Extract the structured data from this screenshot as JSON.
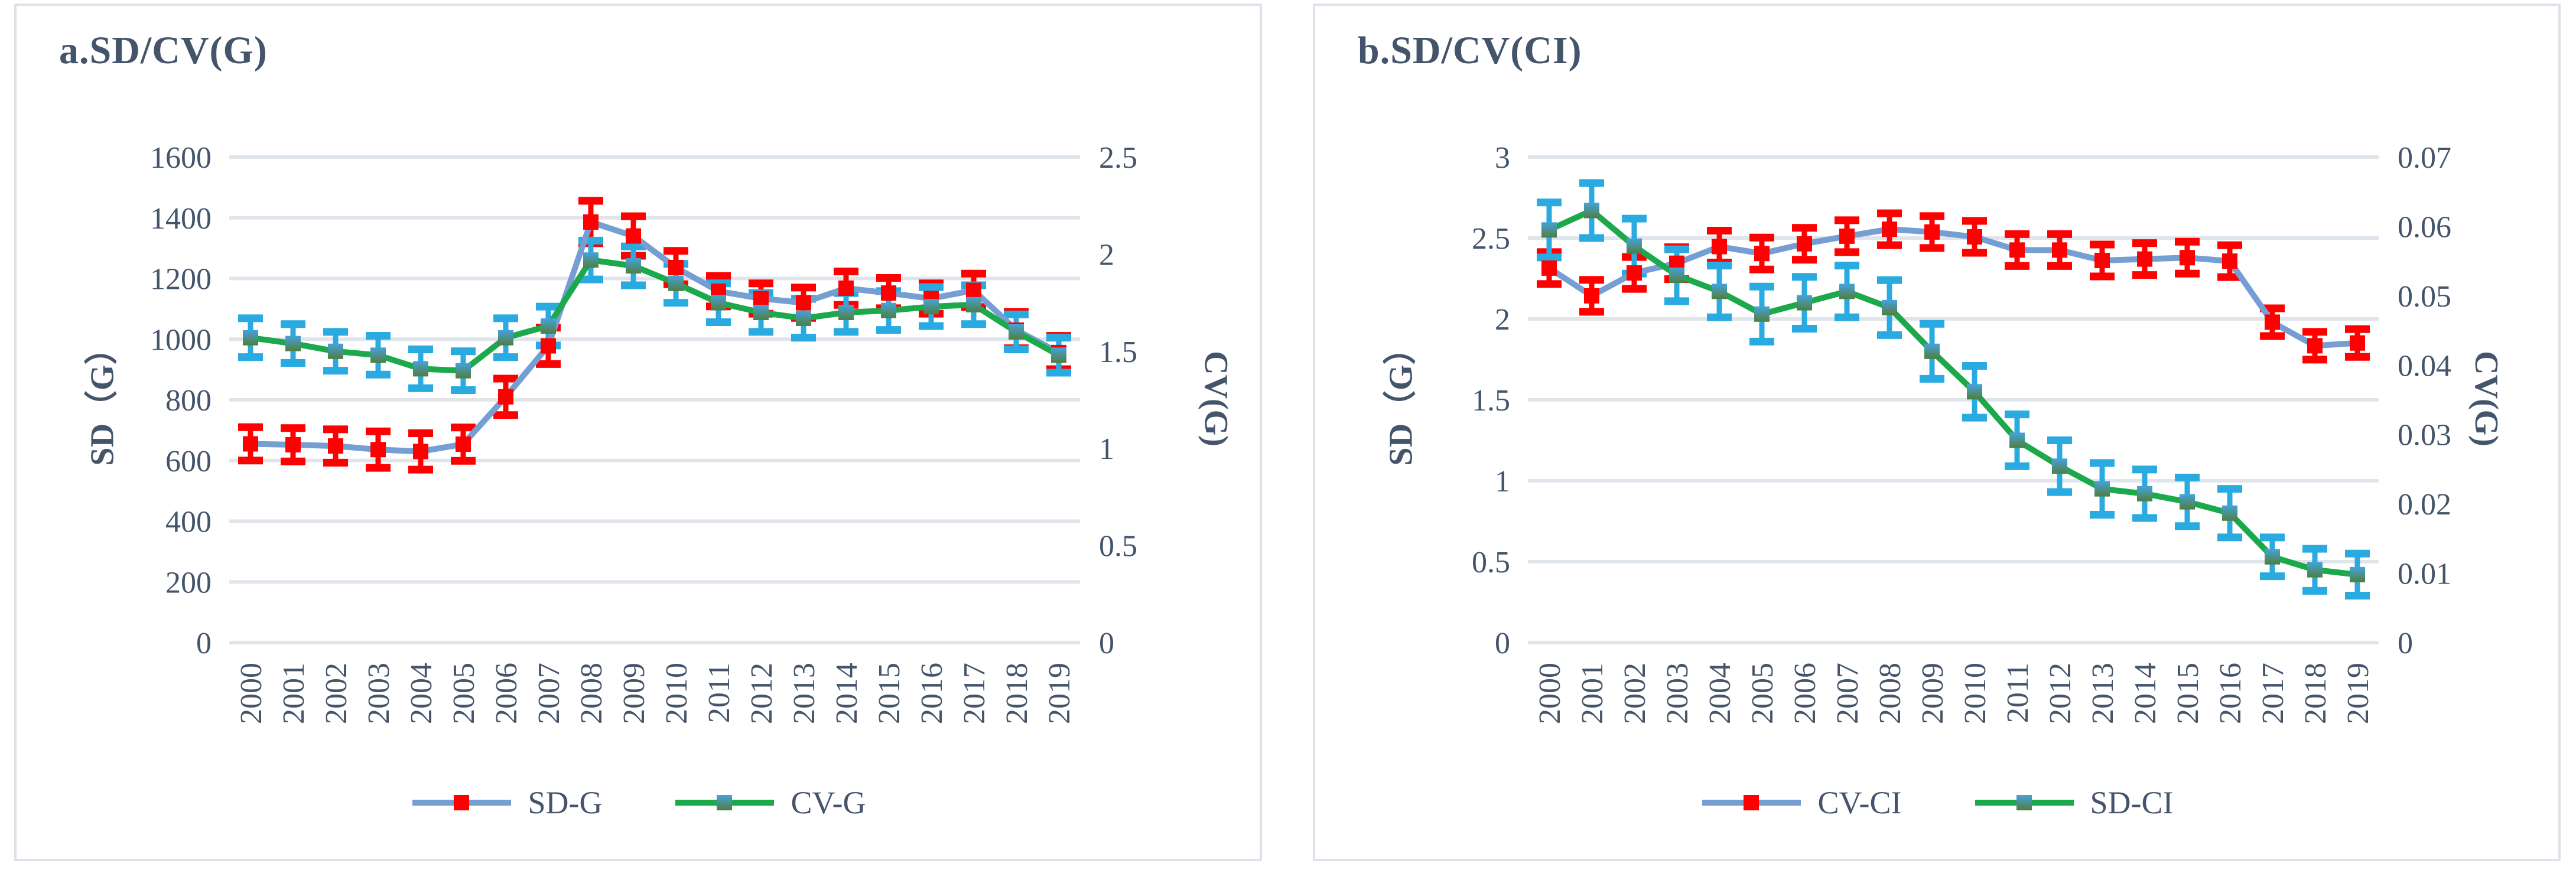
{
  "chart_data": [
    {
      "id": "chart-a",
      "type": "line",
      "title": "a.SD/CV(G)",
      "categories": [
        "2000",
        "2001",
        "2002",
        "2003",
        "2004",
        "2005",
        "2006",
        "2007",
        "2008",
        "2009",
        "2010",
        "2011",
        "2012",
        "2013",
        "2014",
        "2015",
        "2016",
        "2017",
        "2018",
        "2019"
      ],
      "left_axis": {
        "title": "SD（G）",
        "min": 0,
        "max": 1600,
        "ticks": [
          "0",
          "200",
          "400",
          "600",
          "800",
          "1000",
          "1200",
          "1400",
          "1600"
        ]
      },
      "right_axis": {
        "title": "CV(G)",
        "min": 0,
        "max": 2.5,
        "ticks": [
          "0",
          "0.5",
          "1",
          "1.5",
          "2",
          "2.5"
        ]
      },
      "grid": "left-axis-major",
      "legend_position": "bottom-center",
      "series": [
        {
          "name": "SD-G",
          "axis": "left",
          "line_color": "#759ED2",
          "marker": "square-red",
          "marker_color": "#FF0000",
          "error_color": "#FF0000",
          "values": [
            655,
            652,
            648,
            636,
            630,
            654,
            810,
            978,
            1386,
            1340,
            1236,
            1158,
            1134,
            1120,
            1168,
            1152,
            1134,
            1161,
            1030,
            956
          ],
          "errors": [
            55,
            55,
            55,
            60,
            60,
            55,
            60,
            60,
            70,
            65,
            55,
            50,
            50,
            50,
            55,
            50,
            50,
            55,
            60,
            55
          ]
        },
        {
          "name": "CV-G",
          "axis": "right",
          "line_color": "#1CA94C",
          "marker": "square-gradient",
          "marker_color": "#45A3DC",
          "error_color": "#29ABE2",
          "values": [
            1.57,
            1.54,
            1.5,
            1.48,
            1.41,
            1.4,
            1.57,
            1.63,
            1.97,
            1.94,
            1.85,
            1.75,
            1.7,
            1.67,
            1.7,
            1.71,
            1.73,
            1.74,
            1.6,
            1.48
          ],
          "errors": [
            0.1,
            0.1,
            0.1,
            0.1,
            0.1,
            0.1,
            0.1,
            0.1,
            0.1,
            0.1,
            0.1,
            0.1,
            0.1,
            0.1,
            0.1,
            0.1,
            0.1,
            0.1,
            0.09,
            0.09
          ]
        }
      ]
    },
    {
      "id": "chart-b",
      "type": "line",
      "title": "b.SD/CV(CI)",
      "categories": [
        "2000",
        "2001",
        "2002",
        "2003",
        "2004",
        "2005",
        "2006",
        "2007",
        "2008",
        "2009",
        "2010",
        "2011",
        "2012",
        "2013",
        "2014",
        "2015",
        "2016",
        "2017",
        "2018",
        "2019"
      ],
      "left_axis": {
        "title": "SD（G）",
        "min": 0,
        "max": 3,
        "ticks": [
          "0",
          "0.5",
          "1",
          "1.5",
          "2",
          "2.5",
          "3"
        ]
      },
      "right_axis": {
        "title": "CV(G)",
        "min": 0,
        "max": 0.07,
        "ticks": [
          "0",
          "0.01",
          "0.02",
          "0.03",
          "0.04",
          "0.05",
          "0.06",
          "0.07"
        ]
      },
      "grid": "left-axis-major",
      "legend_position": "bottom-center",
      "series": [
        {
          "name": "CV-CI",
          "axis": "right",
          "line_color": "#759ED2",
          "marker": "square-red",
          "marker_color": "#FF0000",
          "error_color": "#FF0000",
          "values": [
            0.054,
            0.05,
            0.0533,
            0.0547,
            0.0571,
            0.0561,
            0.0575,
            0.0586,
            0.0596,
            0.0592,
            0.0585,
            0.0566,
            0.0566,
            0.0551,
            0.0553,
            0.0555,
            0.055,
            0.0462,
            0.0428,
            0.0432
          ],
          "errors": [
            0.0023,
            0.0023,
            0.0023,
            0.0023,
            0.0023,
            0.0023,
            0.0023,
            0.0023,
            0.0023,
            0.0023,
            0.0023,
            0.0023,
            0.0023,
            0.0023,
            0.0023,
            0.0023,
            0.0023,
            0.002,
            0.002,
            0.002
          ]
        },
        {
          "name": "SD-CI",
          "axis": "left",
          "line_color": "#1CA94C",
          "marker": "square-gradient",
          "marker_color": "#45A3DC",
          "error_color": "#29ABE2",
          "values": [
            2.55,
            2.67,
            2.45,
            2.27,
            2.17,
            2.03,
            2.1,
            2.17,
            2.07,
            1.8,
            1.55,
            1.25,
            1.09,
            0.95,
            0.92,
            0.87,
            0.8,
            0.53,
            0.45,
            0.42
          ],
          "errors": [
            0.17,
            0.17,
            0.17,
            0.16,
            0.16,
            0.17,
            0.16,
            0.16,
            0.17,
            0.17,
            0.16,
            0.16,
            0.16,
            0.16,
            0.15,
            0.15,
            0.15,
            0.12,
            0.13,
            0.13
          ]
        }
      ]
    }
  ],
  "style_colors": {
    "text": "#44546A",
    "gridline": "#E0E5EC",
    "panel_border": "#DDE2EA",
    "marker_gradient_top": "#45A3DC",
    "marker_gradient_bottom": "#4F7E3E"
  }
}
